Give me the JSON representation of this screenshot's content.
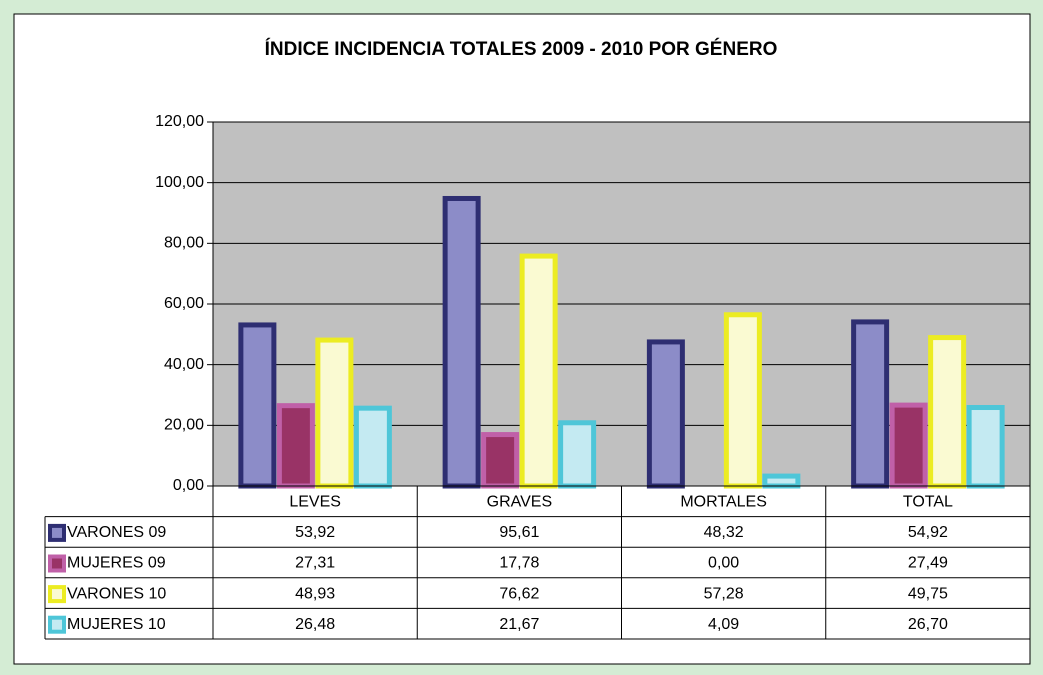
{
  "chart_data": {
    "type": "bar",
    "title": "ÍNDICE INCIDENCIA TOTALES 2009 - 2010 POR GÉNERO",
    "categories": [
      "LEVES",
      "GRAVES",
      "MORTALES",
      "TOTAL"
    ],
    "series": [
      {
        "name": "VARONES 09",
        "color": "#8c8cc8",
        "border_color": "#2e2e72",
        "values": [
          53.92,
          95.61,
          48.32,
          54.92
        ],
        "value_labels": [
          "53,92",
          "95,61",
          "48,32",
          "54,92"
        ]
      },
      {
        "name": "MUJERES 09",
        "color": "#993366",
        "border_color": "#c060a8",
        "values": [
          27.31,
          17.78,
          0.0,
          27.49
        ],
        "value_labels": [
          "27,31",
          "17,78",
          "0,00",
          "27,49"
        ]
      },
      {
        "name": "VARONES 10",
        "color": "#fafad2",
        "border_color": "#ecec22",
        "values": [
          48.93,
          76.62,
          57.28,
          49.75
        ],
        "value_labels": [
          "48,93",
          "76,62",
          "57,28",
          "49,75"
        ]
      },
      {
        "name": "MUJERES 10",
        "color": "#c4eaf2",
        "border_color": "#4ec6d8",
        "values": [
          26.48,
          21.67,
          4.09,
          26.7
        ],
        "value_labels": [
          "26,48",
          "21,67",
          "4,09",
          "26,70"
        ]
      }
    ],
    "ylim": [
      0,
      120
    ],
    "yticks": [
      {
        "value": 0,
        "label": "0,00"
      },
      {
        "value": 20,
        "label": "20,00"
      },
      {
        "value": 40,
        "label": "40,00"
      },
      {
        "value": 60,
        "label": "60,00"
      },
      {
        "value": 80,
        "label": "80,00"
      },
      {
        "value": 100,
        "label": "100,00"
      },
      {
        "value": 120,
        "label": "120,00"
      }
    ],
    "grid": true,
    "plot_background": "#c0c0c0"
  }
}
